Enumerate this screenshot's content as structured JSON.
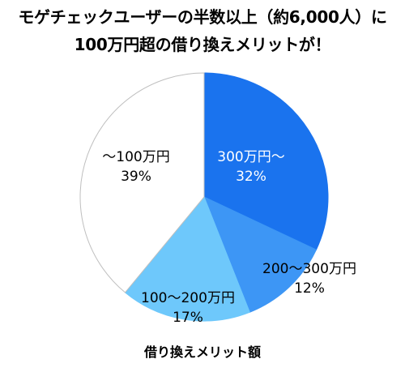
{
  "title": {
    "line1": "モゲチェックユーザーの半数以上（約6,000人）に",
    "line2": "100万円超の借り換えメリットが！"
  },
  "chart_data": {
    "type": "pie",
    "categories": [
      "300万円〜",
      "200〜300万円",
      "100〜200万円",
      "〜100万円"
    ],
    "values": [
      32,
      12,
      17,
      39
    ],
    "value_labels": [
      "32%",
      "12%",
      "17%",
      "39%"
    ],
    "colors": [
      "#1a73ee",
      "#3d96f5",
      "#6ec8fb",
      "#ffffff"
    ],
    "label_colors": [
      "#ffffff",
      "#000000",
      "#000000",
      "#000000"
    ],
    "outline_color": "#bfbfbf",
    "start": "12 o'clock, clockwise",
    "xlabel": "借り換えメリット額",
    "legend": "none"
  }
}
